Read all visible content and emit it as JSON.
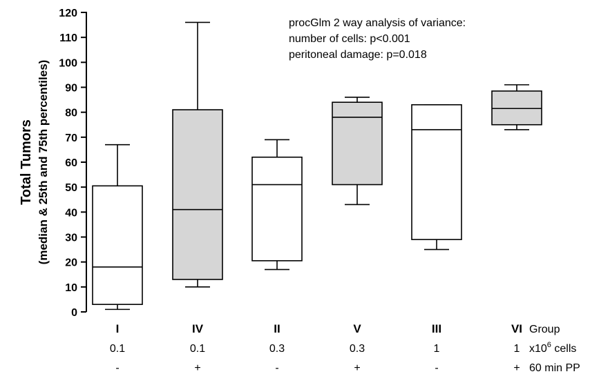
{
  "chart_data": {
    "type": "box",
    "ylabel_line1": "Total Tumors",
    "ylabel_line2": "(median & 25th and 75th percentiles)",
    "ylim": [
      0,
      120
    ],
    "yticks": [
      0,
      10,
      20,
      30,
      40,
      50,
      60,
      70,
      80,
      90,
      100,
      110,
      120
    ],
    "grid": false,
    "annotation": [
      "procGlm 2 way analysis of variance:",
      "number of cells: p<0.001",
      "peritoneal damage: p=0.018"
    ],
    "row_labels": {
      "group": "Group",
      "cells_prefix": "x10",
      "cells_exp": "6",
      "cells_suffix": " cells",
      "pp": "60 min PP"
    },
    "colors": {
      "white_box": "#ffffff",
      "gray_box": "#d6d6d6"
    },
    "groups": [
      {
        "group": "I",
        "cells": "0.1",
        "pp": "-",
        "fill": "white",
        "min": 1,
        "q1": 3,
        "median": 18,
        "q3": 50.5,
        "max": 67
      },
      {
        "group": "IV",
        "cells": "0.1",
        "pp": "+",
        "fill": "gray",
        "min": 10,
        "q1": 13,
        "median": 41,
        "q3": 81,
        "max": 116
      },
      {
        "group": "II",
        "cells": "0.3",
        "pp": "-",
        "fill": "white",
        "min": 17,
        "q1": 20.5,
        "median": 51,
        "q3": 62,
        "max": 69
      },
      {
        "group": "V",
        "cells": "0.3",
        "pp": "+",
        "fill": "gray",
        "min": 43,
        "q1": 51,
        "median": 78,
        "q3": 84,
        "max": 86
      },
      {
        "group": "III",
        "cells": "1",
        "pp": "-",
        "fill": "white",
        "min": 25,
        "q1": 29,
        "median": 73,
        "q3": 83,
        "max": 83
      },
      {
        "group": "VI",
        "cells": "1",
        "pp": "+",
        "fill": "gray",
        "min": 73,
        "q1": 75,
        "median": 81.5,
        "q3": 88.5,
        "max": 91
      }
    ]
  }
}
